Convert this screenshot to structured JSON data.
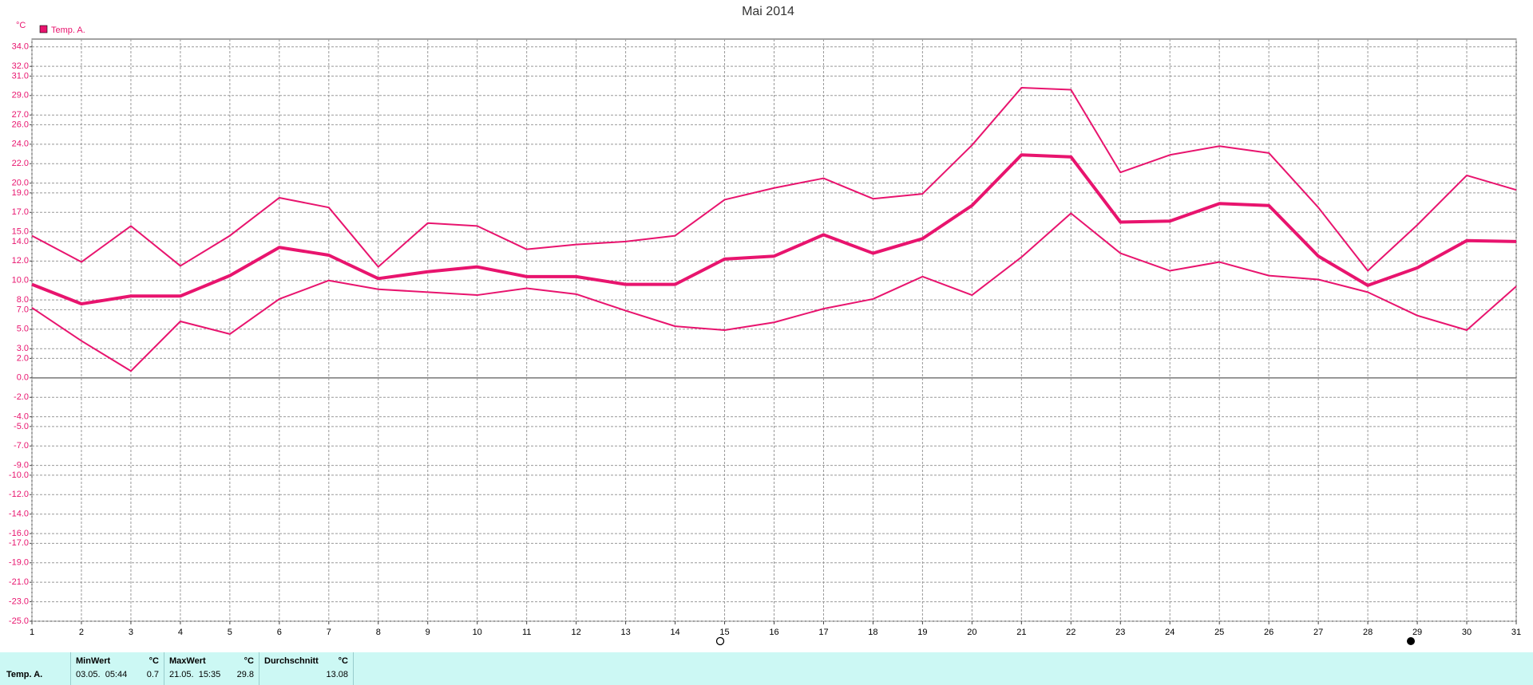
{
  "chart_data": {
    "type": "line",
    "title": "Mai 2014",
    "y_unit": "°C",
    "legend": {
      "name": "Temp. A.",
      "color": "#e8146e"
    },
    "x": [
      1,
      2,
      3,
      4,
      5,
      6,
      7,
      8,
      9,
      10,
      11,
      12,
      13,
      14,
      15,
      16,
      17,
      18,
      19,
      20,
      21,
      22,
      23,
      24,
      25,
      26,
      27,
      28,
      29,
      30,
      31
    ],
    "xlim": [
      1,
      31
    ],
    "xticks": [
      1,
      2,
      3,
      4,
      5,
      6,
      7,
      8,
      9,
      10,
      11,
      12,
      13,
      14,
      15,
      16,
      17,
      18,
      19,
      20,
      21,
      22,
      23,
      24,
      25,
      26,
      27,
      28,
      29,
      30,
      31
    ],
    "ylim": [
      -25,
      34.8
    ],
    "yticks": [
      {
        "value": 34,
        "label": "34.0"
      },
      {
        "value": 32,
        "label": "32.0"
      },
      {
        "value": 31,
        "label": "31.0"
      },
      {
        "value": 29,
        "label": "29.0"
      },
      {
        "value": 27,
        "label": "27.0"
      },
      {
        "value": 26,
        "label": "26.0"
      },
      {
        "value": 24,
        "label": "24.0"
      },
      {
        "value": 22,
        "label": "22.0"
      },
      {
        "value": 20,
        "label": "20.0"
      },
      {
        "value": 19,
        "label": "19.0"
      },
      {
        "value": 17,
        "label": "17.0"
      },
      {
        "value": 15,
        "label": "15.0"
      },
      {
        "value": 14,
        "label": "14.0"
      },
      {
        "value": 12,
        "label": "12.0"
      },
      {
        "value": 10,
        "label": "10.0"
      },
      {
        "value": 8,
        "label": "8.0"
      },
      {
        "value": 7,
        "label": "7.0"
      },
      {
        "value": 5,
        "label": "5.0"
      },
      {
        "value": 3,
        "label": "3.0"
      },
      {
        "value": 2,
        "label": "2.0"
      },
      {
        "value": 0,
        "label": "0.0"
      },
      {
        "value": -2,
        "label": "-2.0"
      },
      {
        "value": -4,
        "label": "-4.0"
      },
      {
        "value": -5,
        "label": "-5.0"
      },
      {
        "value": -7,
        "label": "-7.0"
      },
      {
        "value": -9,
        "label": "-9.0"
      },
      {
        "value": -10,
        "label": "-10.0"
      },
      {
        "value": -12,
        "label": "-12.0"
      },
      {
        "value": -14,
        "label": "-14.0"
      },
      {
        "value": -16,
        "label": "-16.0"
      },
      {
        "value": -17,
        "label": "-17.0"
      },
      {
        "value": -19,
        "label": "-19.0"
      },
      {
        "value": -21,
        "label": "-21.0"
      },
      {
        "value": -23,
        "label": "-23.0"
      },
      {
        "value": -25,
        "label": "-25.0"
      }
    ],
    "grid": true,
    "series": [
      {
        "color": "#e8146e",
        "width": 2,
        "values": [
          14.6,
          11.9,
          15.6,
          11.5,
          14.6,
          18.5,
          17.5,
          11.4,
          15.9,
          15.6,
          13.2,
          13.7,
          14.0,
          14.6,
          18.3,
          19.5,
          20.5,
          18.4,
          18.9,
          23.9,
          29.8,
          29.6,
          21.1,
          22.9,
          23.8,
          23.1,
          17.5,
          11.0,
          15.7,
          20.8,
          19.3
        ]
      },
      {
        "color": "#e8146e",
        "width": 4,
        "values": [
          9.6,
          7.6,
          8.4,
          8.4,
          10.5,
          13.4,
          12.6,
          10.2,
          10.9,
          11.4,
          10.4,
          10.4,
          9.6,
          9.6,
          12.2,
          12.5,
          14.7,
          12.8,
          14.3,
          17.7,
          22.9,
          22.7,
          16.0,
          16.1,
          17.9,
          17.7,
          12.5,
          9.5,
          11.3,
          14.1,
          14.0
        ]
      },
      {
        "color": "#e8146e",
        "width": 2,
        "values": [
          7.2,
          3.8,
          0.7,
          5.8,
          4.5,
          8.1,
          10.0,
          9.1,
          8.8,
          8.5,
          9.2,
          8.6,
          6.9,
          5.3,
          4.9,
          5.7,
          7.1,
          8.1,
          10.4,
          8.5,
          12.4,
          16.9,
          12.8,
          11.0,
          11.9,
          10.5,
          10.1,
          8.8,
          6.4,
          4.9,
          9.4
        ]
      }
    ]
  },
  "stats": {
    "row_label": "Temp. A.",
    "columns": [
      {
        "header": "MinWert",
        "unit": "°C",
        "time": "03.05.  05:44",
        "value": 0.7
      },
      {
        "header": "MaxWert",
        "unit": "°C",
        "time": "21.05.  15:35",
        "value": 29.8
      },
      {
        "header": "Durchschnitt",
        "unit": "°C",
        "value": 13.08
      }
    ]
  }
}
